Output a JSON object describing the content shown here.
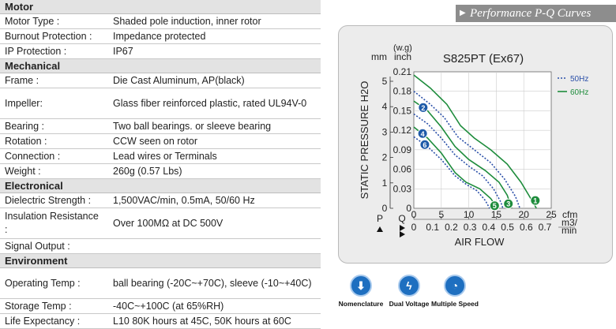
{
  "sections": [
    {
      "title": "Motor",
      "rows": [
        {
          "label": "Motor Type :",
          "value": "Shaded pole induction, inner rotor"
        },
        {
          "label": "Burnout Protection :",
          "value": "Impedance protected"
        },
        {
          "label": "IP Protection :",
          "value": "IP67"
        }
      ]
    },
    {
      "title": "Mechanical",
      "rows": [
        {
          "label": "Frame :",
          "value": "Die Cast Aluminum, AP(black)"
        },
        {
          "label": "Impeller:",
          "value": "Glass fiber reinforced plastic, rated UL94V-0"
        },
        {
          "label": "Bearing :",
          "value": "Two ball bearings. or sleeve bearing"
        },
        {
          "label": "Rotation :",
          "value": "CCW seen on rotor"
        },
        {
          "label": "Connection :",
          "value": "Lead wires or Terminals"
        },
        {
          "label": "Weight :",
          "value": "260g (0.57 Lbs)"
        }
      ]
    },
    {
      "title": "Electronical",
      "rows": [
        {
          "label": "Dielectric Strength :",
          "value": "1,500VAC/min, 0.5mA, 50/60 Hz"
        },
        {
          "label": "Insulation Resistance :",
          "value": "Over 100MΩ at DC 500V"
        },
        {
          "label": "Signal Output :",
          "value": ""
        }
      ]
    },
    {
      "title": "Environment",
      "rows": [
        {
          "label": "Operating Temp :",
          "value": "ball bearing (-20C~+70C), sleeve (-10~+40C)"
        },
        {
          "label": "Storage Temp :",
          "value": "-40C~+100C (at 65%RH)"
        },
        {
          "label": "Life Expectancy :",
          "value": "L10 80K hours at 45C, 50K hours at 60C"
        }
      ]
    }
  ],
  "banner": {
    "label": "Performance P-Q Curves",
    "arrow": "▶"
  },
  "chart_data": {
    "type": "line",
    "title": "S825PT (Ex67)",
    "ylabel": "STATIC PRESSURE H2O",
    "xlabel": "AIR FLOW",
    "y_units_left": "mm",
    "y_units_right_top": "(w.g)",
    "y_units_right": "inch",
    "x_units_top": "cfm",
    "x_units_bottom": "m3/\nmin",
    "y_axis_letter": "P",
    "x_axis_letter": "Q",
    "y_mm_ticks": [
      "0",
      "1",
      "2",
      "3",
      "4",
      "5"
    ],
    "y_inch_ticks": [
      "0",
      "0.03",
      "0.06",
      "0.09",
      "0.12",
      "0.15",
      "0.18",
      "0.21"
    ],
    "x_cfm_ticks": [
      "0",
      "5",
      "10",
      "15",
      "20",
      "25"
    ],
    "x_m3_ticks": [
      "0",
      "0.1",
      "0.2",
      "0.3",
      "0.4",
      "0.5",
      "0.6",
      "0.7"
    ],
    "ylim": [
      0,
      0.21
    ],
    "xlim": [
      0,
      25
    ],
    "legend": [
      {
        "name": "50Hz",
        "color": "#2a4fa8",
        "style": "dotted"
      },
      {
        "name": "60Hz",
        "color": "#1e8c3c",
        "style": "solid"
      }
    ],
    "series": [
      {
        "id": "1",
        "freq": "60Hz",
        "color": "#1e8c3c",
        "dash": "",
        "points": [
          [
            0,
            0.205
          ],
          [
            3,
            0.185
          ],
          [
            6,
            0.16
          ],
          [
            8.5,
            0.127
          ],
          [
            11,
            0.108
          ],
          [
            14,
            0.09
          ],
          [
            17,
            0.068
          ],
          [
            19.5,
            0.04
          ],
          [
            21.5,
            0.012
          ],
          [
            22.3,
            0
          ]
        ]
      },
      {
        "id": "1",
        "freq": "50Hz",
        "color": "#2a4fa8",
        "dash": "2,2",
        "points": [
          [
            0,
            0.18
          ],
          [
            3,
            0.16
          ],
          [
            5.5,
            0.14
          ],
          [
            8,
            0.11
          ],
          [
            11,
            0.09
          ],
          [
            14,
            0.07
          ],
          [
            16.5,
            0.045
          ],
          [
            18.5,
            0.018
          ],
          [
            19.3,
            0
          ]
        ]
      },
      {
        "id": "2",
        "freq": "60Hz",
        "color": "#1e8c3c",
        "dash": "",
        "points": [
          [
            0,
            0.165
          ],
          [
            2.5,
            0.15
          ],
          [
            5,
            0.125
          ],
          [
            7.5,
            0.095
          ],
          [
            10,
            0.075
          ],
          [
            13,
            0.058
          ],
          [
            15.5,
            0.04
          ],
          [
            17,
            0.02
          ],
          [
            17.8,
            0
          ]
        ]
      },
      {
        "id": "2",
        "freq": "50Hz",
        "color": "#2a4fa8",
        "dash": "2,2",
        "points": [
          [
            0,
            0.145
          ],
          [
            2.5,
            0.13
          ],
          [
            5,
            0.108
          ],
          [
            7.5,
            0.082
          ],
          [
            10,
            0.065
          ],
          [
            12.5,
            0.05
          ],
          [
            14.5,
            0.03
          ],
          [
            15.8,
            0.01
          ],
          [
            16.2,
            0
          ]
        ]
      },
      {
        "id": "3",
        "freq": "60Hz",
        "color": "#1e8c3c",
        "dash": "",
        "points": [
          [
            0,
            0.125
          ],
          [
            2.5,
            0.108
          ],
          [
            5,
            0.085
          ],
          [
            7.5,
            0.055
          ],
          [
            9.5,
            0.04
          ],
          [
            12,
            0.03
          ],
          [
            14,
            0.015
          ],
          [
            15.2,
            0
          ]
        ]
      },
      {
        "id": "3",
        "freq": "50Hz",
        "color": "#2a4fa8",
        "dash": "2,2",
        "points": [
          [
            0,
            0.11
          ],
          [
            2.5,
            0.095
          ],
          [
            5,
            0.075
          ],
          [
            7.5,
            0.05
          ],
          [
            9.5,
            0.037
          ],
          [
            11.5,
            0.027
          ],
          [
            13,
            0.012
          ],
          [
            13.8,
            0
          ]
        ]
      }
    ],
    "markers": [
      {
        "label": "1",
        "x": 22.1,
        "y": 0.012,
        "color": "#1e8c3c"
      },
      {
        "label": "3",
        "x": 17.2,
        "y": 0.007,
        "color": "#1e8c3c"
      },
      {
        "label": "5",
        "x": 14.7,
        "y": 0.004,
        "color": "#1e8c3c"
      },
      {
        "label": "2",
        "x": 1.7,
        "y": 0.155,
        "color": "#1e5aa8"
      },
      {
        "label": "4",
        "x": 1.6,
        "y": 0.115,
        "color": "#1e5aa8"
      },
      {
        "label": "6",
        "x": 2.0,
        "y": 0.098,
        "color": "#1e5aa8"
      }
    ]
  },
  "features": [
    {
      "label": "Nomenclature",
      "icon": "down-arrow-icon",
      "glyph": "⬇"
    },
    {
      "label": "Dual Voltage",
      "icon": "lightning-icon",
      "glyph": "ϟ"
    },
    {
      "label": "Multiple Speed",
      "icon": "speedometer-icon",
      "glyph": "◔"
    }
  ]
}
